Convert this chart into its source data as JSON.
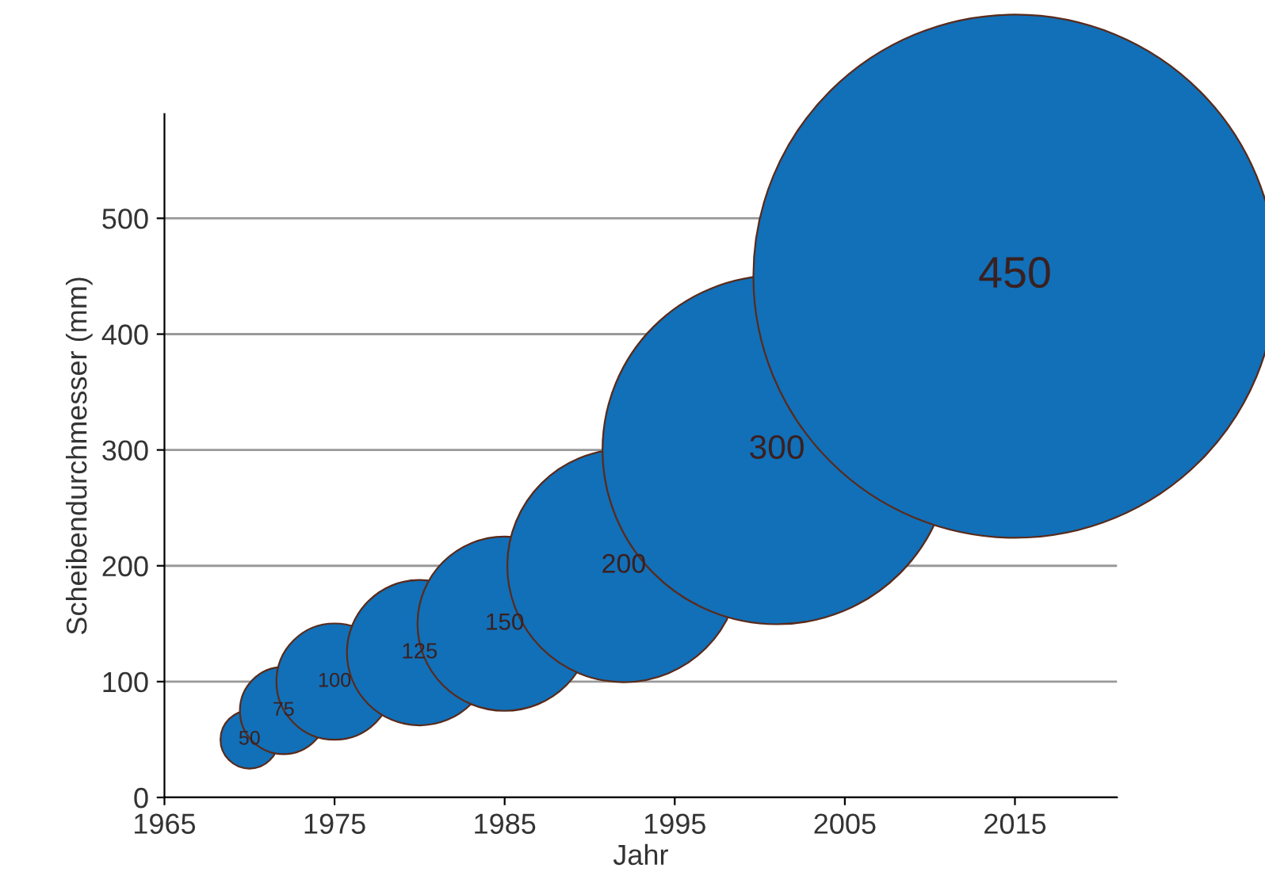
{
  "chart_data": {
    "type": "bubble",
    "xlabel": "Jahr",
    "ylabel": "Scheibendurchmesser (mm)",
    "x": [
      1970,
      1972,
      1975,
      1980,
      1985,
      1992,
      2001,
      2015
    ],
    "values": [
      50,
      75,
      100,
      125,
      150,
      200,
      300,
      450
    ],
    "sizes": [
      0.0123,
      0.0278,
      0.0494,
      0.0772,
      0.111,
      0.198,
      0.444,
      1
    ],
    "color": "#1170b8",
    "data_labels": true,
    "xlim": [
      1965,
      2021
    ],
    "ylim": [
      0,
      590
    ],
    "xticks": [
      1965,
      1975,
      1985,
      1995,
      2005,
      2015
    ],
    "yticks": [
      0,
      100,
      200,
      300,
      400,
      500
    ],
    "grid": "y",
    "legend": false
  }
}
